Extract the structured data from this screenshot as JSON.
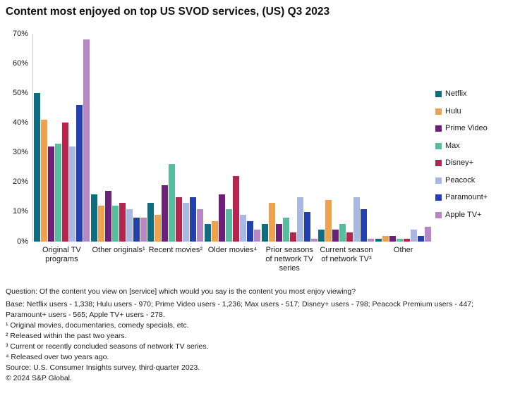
{
  "title": "Content most enjoyed on top US SVOD services, (US) Q3 2023",
  "chart_data": {
    "type": "bar",
    "title": "Content most enjoyed on top US SVOD services, (US) Q3 2023",
    "categories": [
      "Original TV programs",
      "Other originals¹",
      "Recent movies²",
      "Older movies⁴",
      "Prior seasons of network TV series",
      "Current season of network TV³",
      "Other"
    ],
    "series": [
      {
        "name": "Netflix",
        "color": "#0E6D7E",
        "values": [
          50,
          16,
          13,
          6,
          6,
          4,
          1
        ]
      },
      {
        "name": "Hulu",
        "color": "#EFA14E",
        "values": [
          41,
          12,
          9,
          7,
          13,
          14,
          2
        ]
      },
      {
        "name": "Prime Video",
        "color": "#6D2077",
        "values": [
          32,
          17,
          19,
          16,
          6,
          4,
          2
        ]
      },
      {
        "name": "Max",
        "color": "#56BD9E",
        "values": [
          33,
          12,
          26,
          11,
          8,
          6,
          1
        ]
      },
      {
        "name": "Disney+",
        "color": "#B82450",
        "values": [
          40,
          13,
          15,
          22,
          3,
          3,
          1
        ]
      },
      {
        "name": "Peacock",
        "color": "#A9B7E3",
        "values": [
          32,
          11,
          13,
          9,
          15,
          15,
          4
        ]
      },
      {
        "name": "Paramount+",
        "color": "#2240B0",
        "values": [
          46,
          8,
          15,
          7,
          10,
          11,
          2
        ]
      },
      {
        "name": "Apple TV+",
        "color": "#B787C4",
        "values": [
          68,
          8,
          11,
          4,
          1,
          1,
          5
        ]
      }
    ],
    "ylim": [
      0,
      70
    ],
    "ytick_step": 10,
    "ytick_suffix": "%",
    "grid": false,
    "legend_position": "right"
  },
  "footnotes": {
    "question": "Question: Of the content you view on [service] which would you say is the content you most enjoy viewing?",
    "base": "Base: Netflix users - 1,338; Hulu users - 970; Prime Video users - 1,236; Max users - 517; Disney+ users - 798; Peacock Premium users - 447; Paramount+ users - 565; Apple TV+ users - 278.",
    "fn1": "¹ Original movies, documentaries, comedy specials, etc.",
    "fn2": "² Released within the past two years.",
    "fn3": "³ Current or recently concluded seasons of network TV series.",
    "fn4": "⁴ Released over two years ago.",
    "source": "Source: U.S. Consumer Insights survey, third-quarter 2023.",
    "copyright": "© 2024 S&P Global."
  }
}
